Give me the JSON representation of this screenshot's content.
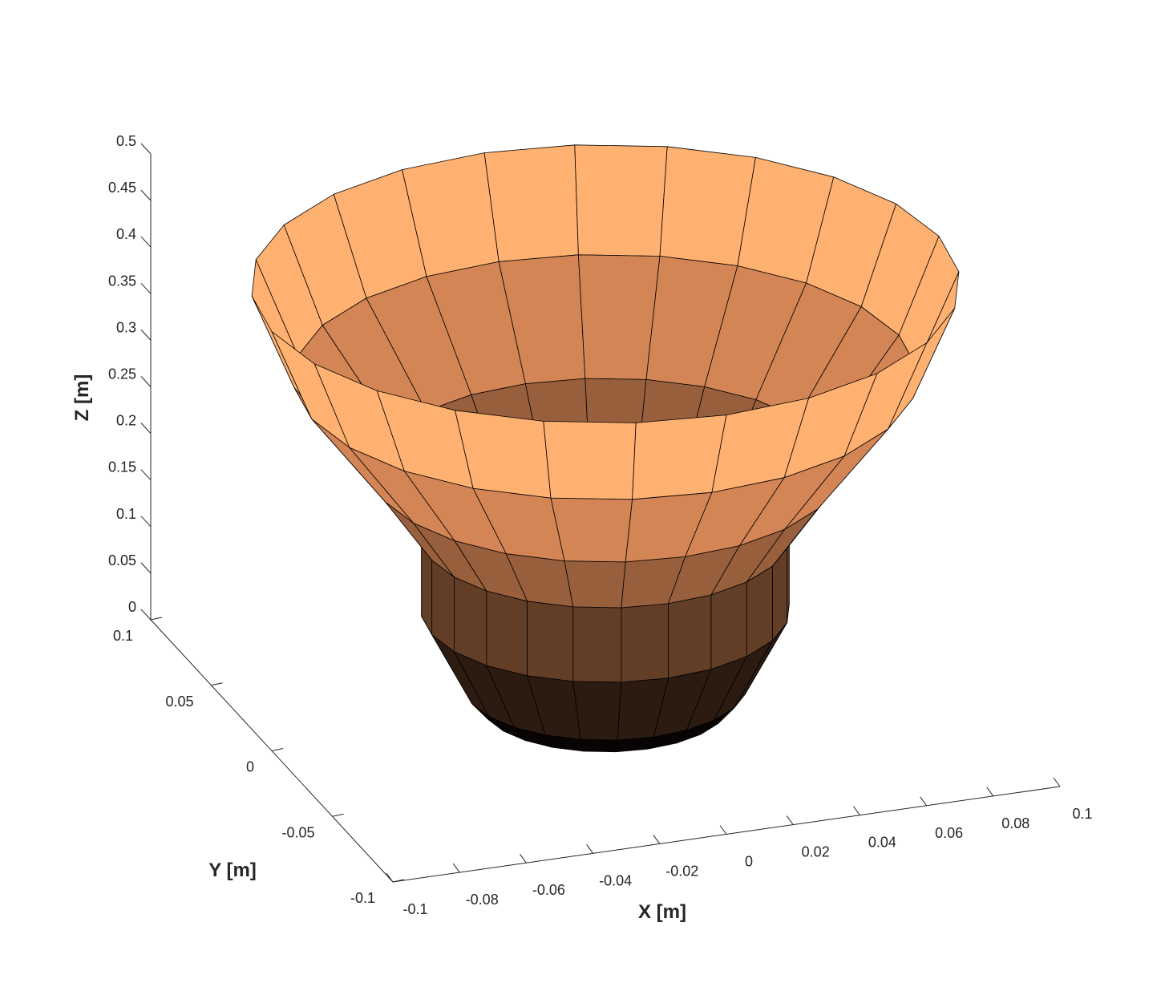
{
  "chart_data": {
    "type": "surface",
    "title": "",
    "xlabel": "X [m]",
    "ylabel": "Y [m]",
    "zlabel": "Z [m]",
    "xlim": [
      -0.1,
      0.1
    ],
    "ylim": [
      -0.1,
      0.1
    ],
    "zlim": [
      0,
      0.5
    ],
    "x_ticks": [
      "-0.1",
      "-0.08",
      "-0.06",
      "-0.04",
      "-0.02",
      "0",
      "0.02",
      "0.04",
      "0.06",
      "0.08",
      "0.1"
    ],
    "y_ticks": [
      "-0.1",
      "-0.05",
      "0",
      "0.05",
      "0.1"
    ],
    "z_ticks": [
      "0",
      "0.05",
      "0.1",
      "0.15",
      "0.2",
      "0.25",
      "0.3",
      "0.35",
      "0.4",
      "0.45",
      "0.5"
    ],
    "grid": false,
    "colormap": "copper",
    "surface": {
      "segments": 24,
      "profile": [
        {
          "z": 0.0,
          "r": 0.035
        },
        {
          "z": 0.02,
          "r": 0.04
        },
        {
          "z": 0.1,
          "r": 0.052
        },
        {
          "z": 0.18,
          "r": 0.052
        },
        {
          "z": 0.25,
          "r": 0.066
        },
        {
          "z": 0.35,
          "r": 0.088
        },
        {
          "z": 0.45,
          "r": 0.1
        }
      ]
    },
    "view": {
      "azimuth": -5,
      "elevation": 20
    }
  }
}
